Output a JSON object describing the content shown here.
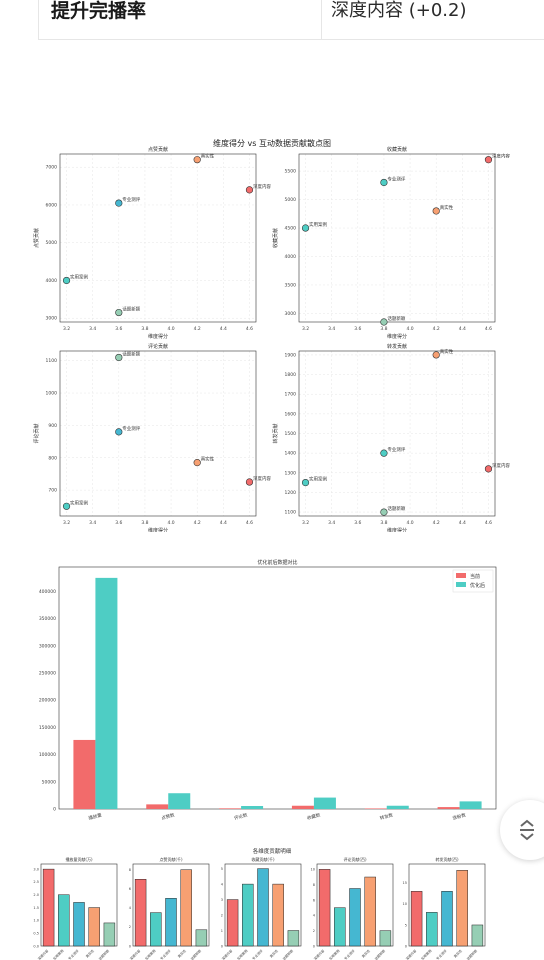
{
  "top_table": {
    "left_text": "提升完播率",
    "right_text": "深度内容 (+0.2)"
  },
  "colors": {
    "series_a": "#f26b6b",
    "series_b": "#4ecdc4",
    "palette": [
      "#f26b6b",
      "#4ecdc4",
      "#45b7d1",
      "#f7a072",
      "#96ceb4"
    ]
  },
  "scatter_figure": {
    "suptitle": "维度得分 vs 互动数据贡献散点图"
  },
  "chart_data": [
    {
      "type": "scatter",
      "title": "点赞贡献",
      "xlabel": "维度得分",
      "ylabel": "点赞贡献",
      "xlim": [
        3.15,
        4.65
      ],
      "ylim": [
        2900,
        7350
      ],
      "xticks": [
        "3.2",
        "3.4",
        "3.6",
        "3.8",
        "4.0",
        "4.2",
        "4.4",
        "4.6"
      ],
      "yticks": [
        "3000",
        "4000",
        "5000",
        "6000",
        "7000"
      ],
      "points": [
        {
          "label": "真实性",
          "x": 4.2,
          "y": 7200,
          "color": "#f7a072"
        },
        {
          "label": "深度内容",
          "x": 4.6,
          "y": 6400,
          "color": "#f26b6b"
        },
        {
          "label": "专业测评",
          "x": 3.6,
          "y": 6050,
          "color": "#45b7d1"
        },
        {
          "label": "实用案例",
          "x": 3.2,
          "y": 4000,
          "color": "#4ecdc4"
        },
        {
          "label": "话题新颖",
          "x": 3.6,
          "y": 3150,
          "color": "#96ceb4"
        }
      ],
      "grid": true
    },
    {
      "type": "scatter",
      "title": "收藏贡献",
      "xlabel": "维度得分",
      "ylabel": "收藏贡献",
      "xlim": [
        3.15,
        4.65
      ],
      "ylim": [
        2850,
        5800
      ],
      "xticks": [
        "3.2",
        "3.4",
        "3.6",
        "3.8",
        "4.0",
        "4.2",
        "4.4",
        "4.6"
      ],
      "yticks": [
        "3000",
        "3500",
        "4000",
        "4500",
        "5000",
        "5500"
      ],
      "points": [
        {
          "label": "深度内容",
          "x": 4.6,
          "y": 5700,
          "color": "#f26b6b"
        },
        {
          "label": "专业测评",
          "x": 3.8,
          "y": 5300,
          "color": "#4ecdc4"
        },
        {
          "label": "真实性",
          "x": 4.2,
          "y": 4800,
          "color": "#f7a072"
        },
        {
          "label": "实用案例",
          "x": 3.2,
          "y": 4500,
          "color": "#4ecdc4"
        },
        {
          "label": "话题新颖",
          "x": 3.8,
          "y": 2850,
          "color": "#96ceb4"
        }
      ],
      "grid": true
    },
    {
      "type": "scatter",
      "title": "评论贡献",
      "xlabel": "维度得分",
      "ylabel": "评论贡献",
      "xlim": [
        3.15,
        4.65
      ],
      "ylim": [
        620,
        1130
      ],
      "xticks": [
        "3.2",
        "3.4",
        "3.6",
        "3.8",
        "4.0",
        "4.2",
        "4.4",
        "4.6"
      ],
      "yticks": [
        "700",
        "800",
        "900",
        "1000",
        "1100"
      ],
      "points": [
        {
          "label": "话题新颖",
          "x": 3.6,
          "y": 1110,
          "color": "#96ceb4"
        },
        {
          "label": "专业测评",
          "x": 3.6,
          "y": 880,
          "color": "#45b7d1"
        },
        {
          "label": "真实性",
          "x": 4.2,
          "y": 785,
          "color": "#f7a072"
        },
        {
          "label": "深度内容",
          "x": 4.6,
          "y": 725,
          "color": "#f26b6b"
        },
        {
          "label": "实用案例",
          "x": 3.2,
          "y": 650,
          "color": "#4ecdc4"
        }
      ],
      "grid": true
    },
    {
      "type": "scatter",
      "title": "转发贡献",
      "xlabel": "维度得分",
      "ylabel": "转发贡献",
      "xlim": [
        3.15,
        4.65
      ],
      "ylim": [
        1080,
        1920
      ],
      "xticks": [
        "3.2",
        "3.4",
        "3.6",
        "3.8",
        "4.0",
        "4.2",
        "4.4",
        "4.6"
      ],
      "yticks": [
        "1100",
        "1200",
        "1300",
        "1400",
        "1500",
        "1600",
        "1700",
        "1800",
        "1900"
      ],
      "points": [
        {
          "label": "真实性",
          "x": 4.2,
          "y": 1900,
          "color": "#f7a072"
        },
        {
          "label": "专业测评",
          "x": 3.8,
          "y": 1400,
          "color": "#4ecdc4"
        },
        {
          "label": "深度内容",
          "x": 4.6,
          "y": 1320,
          "color": "#f26b6b"
        },
        {
          "label": "实用案例",
          "x": 3.2,
          "y": 1250,
          "color": "#4ecdc4"
        },
        {
          "label": "话题新颖",
          "x": 3.8,
          "y": 1100,
          "color": "#96ceb4"
        }
      ],
      "grid": true
    },
    {
      "type": "bar",
      "title": "优化前后数据对比",
      "categories": [
        "播放量",
        "点赞数",
        "评论数",
        "收藏数",
        "转发数",
        "涨粉数"
      ],
      "series": [
        {
          "name": "当前",
          "values": [
            127000,
            8500,
            1200,
            6000,
            1000,
            3500
          ],
          "color": "#f26b6b"
        },
        {
          "name": "优化后",
          "values": [
            425000,
            29000,
            5500,
            21000,
            6000,
            14000
          ],
          "color": "#4ecdc4"
        }
      ],
      "ylim": [
        0,
        445000
      ],
      "yticks": [
        "0",
        "50000",
        "100000",
        "150000",
        "200000",
        "250000",
        "300000",
        "350000",
        "400000"
      ],
      "legend": "top-right"
    },
    {
      "type": "bar",
      "title": "各维度贡献明细",
      "panels": [
        {
          "title": "播放量贡献(万)",
          "values": [
            3.0,
            2.0,
            1.7,
            1.5,
            0.9
          ],
          "yticks": [
            "0.0",
            "0.5",
            "1.0",
            "1.5",
            "2.0",
            "2.5",
            "3.0"
          ],
          "ymax": 3.2
        },
        {
          "title": "点赞贡献(千)",
          "values": [
            7.0,
            3.5,
            5.0,
            8.0,
            1.7
          ],
          "yticks": [
            "0",
            "2",
            "4",
            "6",
            "8"
          ],
          "ymax": 8.6
        },
        {
          "title": "收藏贡献(千)",
          "values": [
            3.0,
            4.0,
            5.0,
            4.0,
            1.0
          ],
          "yticks": [
            "0",
            "1",
            "2",
            "3",
            "4",
            "5"
          ],
          "ymax": 5.3
        },
        {
          "title": "评论贡献(百)",
          "values": [
            10.0,
            5.0,
            7.5,
            9.0,
            2.0
          ],
          "yticks": [
            "0",
            "2",
            "4",
            "6",
            "8",
            "10"
          ],
          "ymax": 10.7
        },
        {
          "title": "转发贡献(百)",
          "values": [
            13.0,
            8.0,
            13.0,
            18.0,
            5.0
          ],
          "yticks": [
            "0",
            "5",
            "10",
            "15"
          ],
          "ymax": 19.5
        }
      ],
      "categories": [
        "深度内容",
        "实用案例",
        "专业测评",
        "真实性",
        "话题新颖"
      ]
    }
  ]
}
